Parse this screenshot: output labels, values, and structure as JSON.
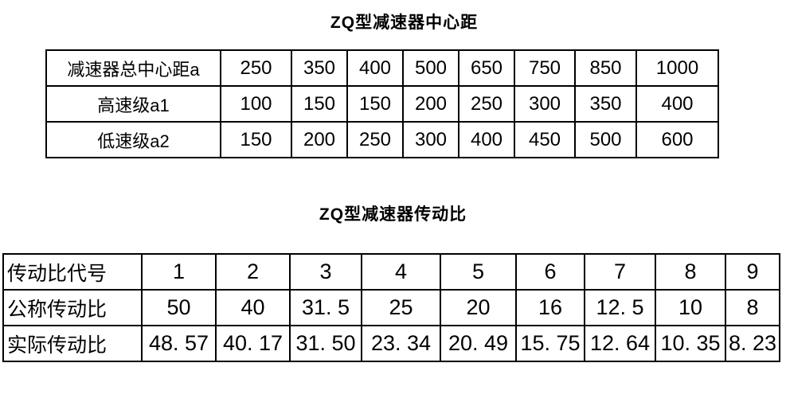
{
  "page": {
    "background_color": "#ffffff",
    "text_color": "#000000",
    "border_color": "#000000"
  },
  "tables": [
    {
      "title": "ZQ型减速器中心距",
      "rows": [
        {
          "label": "减速器总中心距a",
          "values": [
            "250",
            "350",
            "400",
            "500",
            "650",
            "750",
            "850",
            "1000"
          ]
        },
        {
          "label": "高速级a1",
          "values": [
            "100",
            "150",
            "150",
            "200",
            "250",
            "300",
            "350",
            "400"
          ]
        },
        {
          "label": "低速级a2",
          "values": [
            "150",
            "200",
            "250",
            "300",
            "400",
            "450",
            "500",
            "600"
          ]
        }
      ]
    },
    {
      "title": "ZQ型减速器传动比",
      "rows": [
        {
          "label": "传动比代号",
          "values": [
            "1",
            "2",
            "3",
            "4",
            "5",
            "6",
            "7",
            "8",
            "9"
          ]
        },
        {
          "label": "公称传动比",
          "values": [
            "50",
            "40",
            "31. 5",
            "25",
            "20",
            "16",
            "12. 5",
            "10",
            "8"
          ]
        },
        {
          "label": "实际传动比",
          "values": [
            "48. 57",
            "40. 17",
            "31. 50",
            "23. 34",
            "20. 49",
            "15. 75",
            "12. 64",
            "10. 35",
            "8. 23"
          ]
        }
      ]
    }
  ]
}
